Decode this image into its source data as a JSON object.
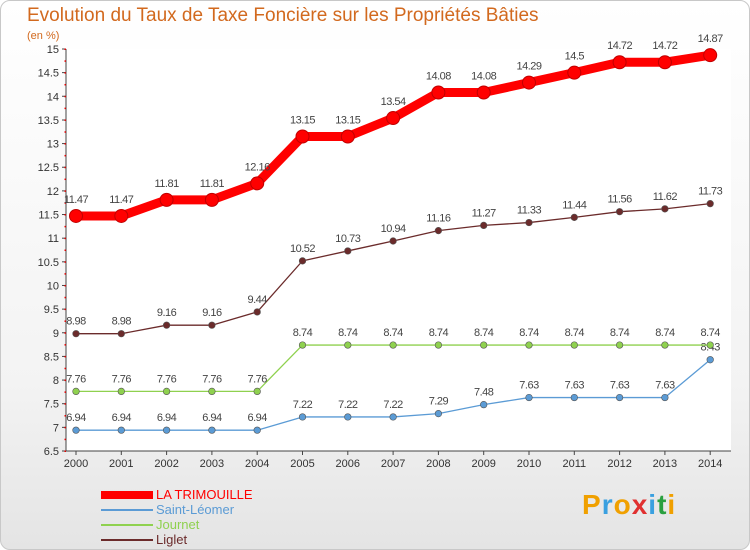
{
  "title": "Evolution du Taux de Taxe Foncière sur les Propriétés Bâties",
  "subtitle": "(en %)",
  "logo": {
    "text": "Proxiti",
    "colors": [
      "#f0a000",
      "#3aa0e0",
      "#f0a000",
      "#e03030",
      "#3aa0e0",
      "#2aa040",
      "#f0a000"
    ]
  },
  "chart_data": {
    "type": "line",
    "x": [
      2000,
      2001,
      2002,
      2003,
      2004,
      2005,
      2006,
      2007,
      2008,
      2009,
      2010,
      2011,
      2012,
      2013,
      2014
    ],
    "ylim": [
      6.5,
      15
    ],
    "yticks": [
      6.5,
      7,
      7.5,
      8,
      8.5,
      9,
      9.5,
      10,
      10.5,
      11,
      11.5,
      12,
      12.5,
      13,
      13.5,
      14,
      14.5,
      15
    ],
    "grid": false,
    "legend_position": "bottom-left",
    "series": [
      {
        "name": "LA TRIMOUILLE",
        "color": "#ff0000",
        "emphasis": true,
        "values": [
          11.47,
          11.47,
          11.81,
          11.81,
          12.16,
          13.15,
          13.15,
          13.54,
          14.08,
          14.08,
          14.29,
          14.5,
          14.72,
          14.72,
          14.87
        ],
        "labels": [
          "11.47",
          "11.47",
          "11.81",
          "11.81",
          "12.16",
          "13.15",
          "13.15",
          "13.54",
          "14.08",
          "14.08",
          "14.29",
          "14.5",
          "14.72",
          "14.72",
          "14.87"
        ]
      },
      {
        "name": "Saint-Léomer",
        "color": "#5b9bd5",
        "values": [
          6.94,
          6.94,
          6.94,
          6.94,
          6.94,
          7.22,
          7.22,
          7.22,
          7.29,
          7.48,
          7.63,
          7.63,
          7.63,
          7.63,
          8.43
        ],
        "labels": [
          "6.94",
          "6.94",
          "6.94",
          "6.94",
          "6.94",
          "7.22",
          "7.22",
          "7.22",
          "7.29",
          "7.48",
          "7.63",
          "7.63",
          "7.63",
          "7.63",
          "8.43"
        ]
      },
      {
        "name": "Journet",
        "color": "#8fd14f",
        "values": [
          7.76,
          7.76,
          7.76,
          7.76,
          7.76,
          8.74,
          8.74,
          8.74,
          8.74,
          8.74,
          8.74,
          8.74,
          8.74,
          8.74,
          8.74
        ],
        "labels": [
          "7.76",
          "7.76",
          "7.76",
          "7.76",
          "7.76",
          "8.74",
          "8.74",
          "8.74",
          "8.74",
          "8.74",
          "8.74",
          "8.74",
          "8.74",
          "8.74",
          "8.74"
        ]
      },
      {
        "name": "Liglet",
        "color": "#6b2b2b",
        "values": [
          8.98,
          8.98,
          9.16,
          9.16,
          9.44,
          10.52,
          10.73,
          10.94,
          11.16,
          11.27,
          11.33,
          11.44,
          11.56,
          11.62,
          11.73
        ],
        "labels": [
          "8.98",
          "8.98",
          "9.16",
          "9.16",
          "9.44",
          "10.52",
          "10.73",
          "10.94",
          "11.16",
          "11.27",
          "11.33",
          "11.44",
          "11.56",
          "11.62",
          "11.73"
        ]
      }
    ]
  }
}
